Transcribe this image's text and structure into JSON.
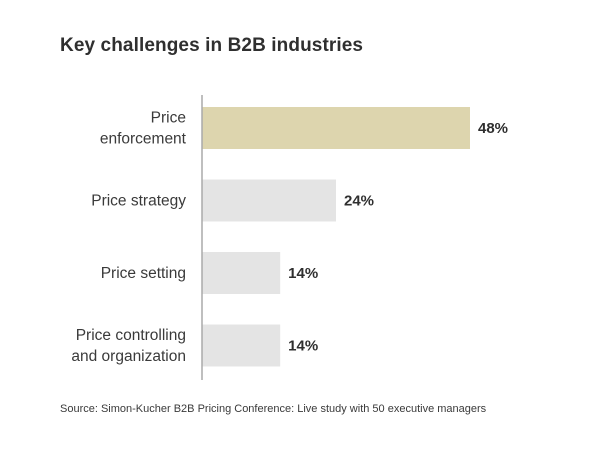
{
  "chart_data": {
    "type": "bar",
    "orientation": "horizontal",
    "title": "Key challenges in B2B industries",
    "categories": [
      "Price\nenforcement",
      "Price strategy",
      "Price setting",
      "Price controlling\nand organization"
    ],
    "values": [
      48,
      24,
      14,
      14
    ],
    "value_labels": [
      "48%",
      "24%",
      "14%",
      "14%"
    ],
    "unit": "%",
    "xlim": [
      0,
      48
    ],
    "grid": false,
    "legend": "none",
    "colors": {
      "highlight": "#ddd5ae",
      "default": "#e4e4e4",
      "axis": "#aaaaaa"
    },
    "highlight_index": 0
  },
  "source": "Source: Simon-Kucher B2B Pricing Conference: Live study with 50 executive managers"
}
